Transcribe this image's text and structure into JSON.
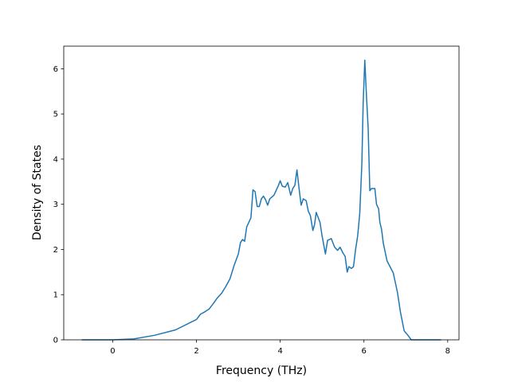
{
  "chart_data": {
    "type": "line",
    "x_label": "Frequency (THz)",
    "y_label": "Density of States",
    "x": [
      -0.74,
      0,
      0.5,
      1,
      1.5,
      2,
      2.1,
      2.2,
      2.3,
      2.4,
      2.5,
      2.6,
      2.7,
      2.8,
      2.9,
      3.0,
      3.05,
      3.1,
      3.15,
      3.2,
      3.3,
      3.35,
      3.4,
      3.45,
      3.5,
      3.55,
      3.6,
      3.65,
      3.7,
      3.75,
      3.85,
      3.95,
      4.0,
      4.05,
      4.12,
      4.18,
      4.25,
      4.3,
      4.35,
      4.4,
      4.45,
      4.5,
      4.55,
      4.62,
      4.67,
      4.72,
      4.78,
      4.82,
      4.86,
      4.95,
      5.0,
      5.08,
      5.13,
      5.22,
      5.3,
      5.37,
      5.43,
      5.5,
      5.55,
      5.6,
      5.64,
      5.7,
      5.75,
      5.8,
      5.85,
      5.9,
      5.95,
      5.98,
      6.02,
      6.06,
      6.1,
      6.14,
      6.18,
      6.26,
      6.3,
      6.35,
      6.38,
      6.42,
      6.46,
      6.55,
      6.7,
      6.8,
      6.87,
      6.96,
      7.05,
      7.13,
      7.84
    ],
    "series": [
      {
        "color": "#1f77b4",
        "values": [
          0,
          0,
          0.02,
          0.1,
          0.22,
          0.45,
          0.57,
          0.62,
          0.68,
          0.8,
          0.93,
          1.03,
          1.18,
          1.35,
          1.65,
          1.9,
          2.15,
          2.22,
          2.18,
          2.5,
          2.7,
          3.32,
          3.28,
          2.95,
          2.95,
          3.12,
          3.18,
          3.1,
          2.98,
          3.12,
          3.2,
          3.4,
          3.52,
          3.4,
          3.38,
          3.48,
          3.2,
          3.35,
          3.42,
          3.76,
          3.35,
          2.98,
          3.12,
          3.08,
          2.85,
          2.75,
          2.42,
          2.55,
          2.82,
          2.6,
          2.3,
          1.9,
          2.2,
          2.24,
          2.05,
          1.98,
          2.05,
          1.92,
          1.85,
          1.5,
          1.62,
          1.58,
          1.62,
          2.0,
          2.3,
          2.8,
          3.9,
          5.2,
          6.19,
          5.4,
          4.7,
          3.3,
          3.35,
          3.35,
          3.0,
          2.9,
          2.6,
          2.45,
          2.15,
          1.75,
          1.48,
          1.05,
          0.62,
          0.2,
          0.1,
          0,
          0
        ]
      }
    ],
    "xlim": [
      -1.17,
      8.27
    ],
    "ylim": [
      0,
      6.5
    ],
    "xticks": [
      0,
      2,
      4,
      6,
      8
    ],
    "yticks": [
      0,
      1,
      2,
      3,
      4,
      5,
      6
    ]
  }
}
